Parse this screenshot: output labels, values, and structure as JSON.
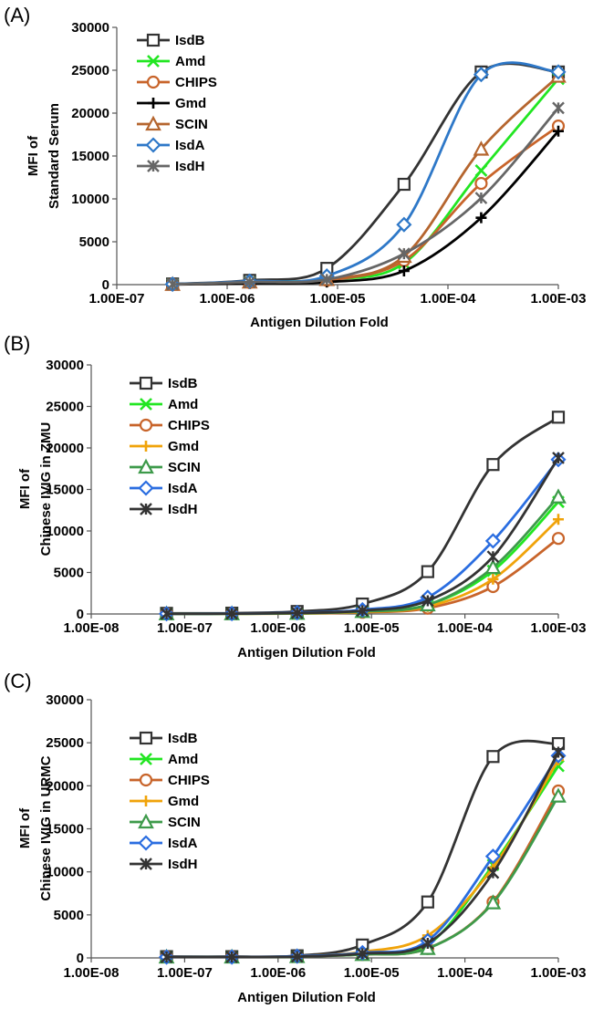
{
  "chart_data": [
    {
      "type": "line",
      "panel_label": "(A)",
      "xlabel": "Antigen Dilution Fold",
      "ylabel": [
        "MFI of",
        "Standard Serum"
      ],
      "x_scale": "log",
      "xlim": [
        1e-07,
        0.001
      ],
      "ylim": [
        0,
        30000
      ],
      "x_ticks": [
        "1.00E-07",
        "1.00E-06",
        "1.00E-05",
        "1.00E-04",
        "1.00E-03"
      ],
      "y_ticks": [
        "0",
        "5000",
        "10000",
        "15000",
        "20000",
        "25000",
        "30000"
      ],
      "legend_position": "top-left",
      "x": [
        3.2e-07,
        1.6e-06,
        8e-06,
        4e-05,
        0.0002,
        0.001
      ],
      "series": [
        {
          "name": "IsdB",
          "color": "#333333",
          "marker": "square",
          "values": [
            80,
            500,
            1900,
            11700,
            24800,
            24800
          ]
        },
        {
          "name": "Amd",
          "color": "#22e622",
          "marker": "x",
          "values": [
            30,
            300,
            600,
            2500,
            13300,
            24000
          ]
        },
        {
          "name": "CHIPS",
          "color": "#c8642a",
          "marker": "circle",
          "values": [
            30,
            250,
            500,
            2800,
            11800,
            18500
          ]
        },
        {
          "name": "Gmd",
          "color": "#000000",
          "marker": "plus",
          "values": [
            20,
            150,
            300,
            1600,
            7800,
            17900
          ]
        },
        {
          "name": "SCIN",
          "color": "#b5652e",
          "marker": "triangle",
          "values": [
            30,
            300,
            600,
            3300,
            15800,
            24300
          ]
        },
        {
          "name": "IsdA",
          "color": "#2e78c8",
          "marker": "diamond",
          "values": [
            50,
            400,
            1000,
            7000,
            24500,
            24800
          ]
        },
        {
          "name": "IsdH",
          "color": "#666666",
          "marker": "star",
          "values": [
            40,
            300,
            600,
            3600,
            10100,
            20600
          ]
        }
      ]
    },
    {
      "type": "line",
      "panel_label": "(B)",
      "xlabel": "Antigen Dilution Fold",
      "ylabel": [
        "MFI of",
        "Chinese IVIG in ZMU"
      ],
      "x_scale": "log",
      "xlim": [
        1e-08,
        0.001
      ],
      "ylim": [
        0,
        30000
      ],
      "x_ticks": [
        "1.00E-08",
        "1.00E-07",
        "1.00E-06",
        "1.00E-05",
        "1.00E-04",
        "1.00E-03"
      ],
      "y_ticks": [
        "0",
        "5000",
        "10000",
        "15000",
        "20000",
        "25000",
        "30000"
      ],
      "legend_position": "top-left",
      "x": [
        6.4e-08,
        3.2e-07,
        1.6e-06,
        8e-06,
        4e-05,
        0.0002,
        0.001
      ],
      "series": [
        {
          "name": "IsdB",
          "color": "#333333",
          "marker": "square",
          "values": [
            80,
            100,
            300,
            1200,
            5100,
            18000,
            23700
          ]
        },
        {
          "name": "Amd",
          "color": "#22e622",
          "marker": "x",
          "values": [
            20,
            30,
            80,
            300,
            1100,
            5200,
            13500
          ]
        },
        {
          "name": "CHIPS",
          "color": "#c8642a",
          "marker": "circle",
          "values": [
            20,
            30,
            60,
            200,
            700,
            3300,
            9100
          ]
        },
        {
          "name": "Gmd",
          "color": "#f0a30a",
          "marker": "plus",
          "values": [
            20,
            30,
            60,
            250,
            900,
            4200,
            11400
          ]
        },
        {
          "name": "SCIN",
          "color": "#3d9a4a",
          "marker": "triangle",
          "values": [
            20,
            30,
            80,
            300,
            1100,
            5600,
            14100
          ]
        },
        {
          "name": "IsdA",
          "color": "#2a6de0",
          "marker": "diamond",
          "values": [
            30,
            50,
            150,
            500,
            2000,
            8800,
            18600
          ]
        },
        {
          "name": "IsdH",
          "color": "#333333",
          "marker": "star",
          "values": [
            30,
            40,
            120,
            400,
            1600,
            6900,
            18800
          ]
        }
      ]
    },
    {
      "type": "line",
      "panel_label": "(C)",
      "xlabel": "Antigen Dilution Fold",
      "ylabel": [
        "MFI of",
        "Chinese IVIG in URMC"
      ],
      "x_scale": "log",
      "xlim": [
        1e-08,
        0.001
      ],
      "ylim": [
        0,
        30000
      ],
      "x_ticks": [
        "1.00E-08",
        "1.00E-07",
        "1.00E-06",
        "1.00E-05",
        "1.00E-04",
        "1.00E-03"
      ],
      "y_ticks": [
        "0",
        "5000",
        "10000",
        "15000",
        "20000",
        "25000",
        "30000"
      ],
      "legend_position": "top-left",
      "x": [
        6.4e-08,
        3.2e-07,
        1.6e-06,
        8e-06,
        4e-05,
        0.0002,
        0.001
      ],
      "series": [
        {
          "name": "IsdB",
          "color": "#333333",
          "marker": "square",
          "values": [
            150,
            150,
            250,
            1500,
            6500,
            23400,
            24900
          ]
        },
        {
          "name": "Amd",
          "color": "#22e622",
          "marker": "x",
          "values": [
            100,
            100,
            150,
            500,
            1500,
            10800,
            22300
          ]
        },
        {
          "name": "CHIPS",
          "color": "#c8642a",
          "marker": "circle",
          "values": [
            100,
            100,
            150,
            400,
            1100,
            6500,
            19400
          ]
        },
        {
          "name": "Gmd",
          "color": "#f0a30a",
          "marker": "plus",
          "values": [
            100,
            100,
            200,
            700,
            2600,
            10500,
            23000
          ]
        },
        {
          "name": "SCIN",
          "color": "#3d9a4a",
          "marker": "triangle",
          "values": [
            100,
            100,
            150,
            400,
            1100,
            6400,
            18800
          ]
        },
        {
          "name": "IsdA",
          "color": "#2a6de0",
          "marker": "diamond",
          "values": [
            100,
            100,
            200,
            600,
            2000,
            11800,
            23500
          ]
        },
        {
          "name": "IsdH",
          "color": "#333333",
          "marker": "star",
          "values": [
            100,
            100,
            150,
            500,
            1700,
            9900,
            23900
          ]
        }
      ]
    }
  ]
}
